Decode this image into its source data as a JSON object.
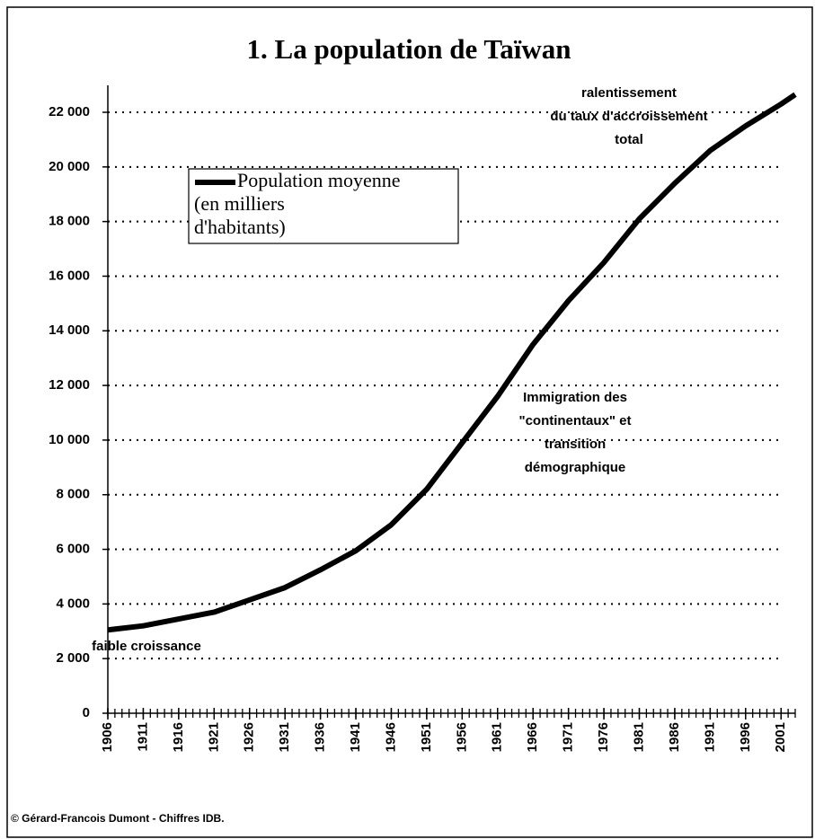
{
  "chart_data": {
    "type": "line",
    "title": "1. La population de Taïwan",
    "x": [
      1906,
      1911,
      1916,
      1921,
      1926,
      1931,
      1936,
      1941,
      1946,
      1951,
      1956,
      1961,
      1966,
      1971,
      1976,
      1981,
      1986,
      1991,
      1996,
      2001,
      2003
    ],
    "series": [
      {
        "name": "Population moyenne\n(en milliers\nd'habitants)",
        "color": "#000000",
        "values": [
          3050,
          3200,
          3450,
          3700,
          4150,
          4600,
          5250,
          5950,
          6900,
          8200,
          9900,
          11600,
          13500,
          15100,
          16500,
          18100,
          19400,
          20600,
          21500,
          22300,
          22650
        ]
      }
    ],
    "xlim": [
      1906,
      2003
    ],
    "xticks": [
      1906,
      1911,
      1916,
      1921,
      1926,
      1931,
      1936,
      1941,
      1946,
      1951,
      1956,
      1961,
      1966,
      1971,
      1976,
      1981,
      1986,
      1991,
      1996,
      2001
    ],
    "xminorticks": [
      1906,
      1907,
      1908,
      1909,
      1910,
      1911,
      1912,
      1913,
      1914,
      1915,
      1916,
      1917,
      1918,
      1919,
      1920,
      1921,
      1922,
      1923,
      1924,
      1925,
      1926,
      1927,
      1928,
      1929,
      1930,
      1931,
      1932,
      1933,
      1934,
      1935,
      1936,
      1937,
      1938,
      1939,
      1940,
      1941,
      1942,
      1943,
      1944,
      1945,
      1946,
      1947,
      1948,
      1949,
      1950,
      1951,
      1952,
      1953,
      1954,
      1955,
      1956,
      1957,
      1958,
      1959,
      1960,
      1961,
      1962,
      1963,
      1964,
      1965,
      1966,
      1967,
      1968,
      1969,
      1970,
      1971,
      1972,
      1973,
      1974,
      1975,
      1976,
      1977,
      1978,
      1979,
      1980,
      1981,
      1982,
      1983,
      1984,
      1985,
      1986,
      1987,
      1988,
      1989,
      1990,
      1991,
      1992,
      1993,
      1994,
      1995,
      1996,
      1997,
      1998,
      1999,
      2000,
      2001,
      2002,
      2003
    ],
    "ylim": [
      0,
      22000
    ],
    "yticks": [
      0,
      {
        "value": 2000,
        "label": "2 000"
      },
      {
        "value": 4000,
        "label": "4 000"
      },
      {
        "value": 6000,
        "label": "6 000"
      },
      {
        "value": 8000,
        "label": "8 000"
      },
      {
        "value": 10000,
        "label": "10 000"
      },
      {
        "value": 12000,
        "label": "12 000"
      },
      {
        "value": 14000,
        "label": "14 000"
      },
      {
        "value": 16000,
        "label": "16 000"
      },
      {
        "value": 18000,
        "label": "18 000"
      },
      {
        "value": 20000,
        "label": "20 000"
      },
      {
        "value": 22000,
        "label": "22 000"
      }
    ],
    "grid": true,
    "annotations": [
      [
        "ralentissement",
        "du taux d'accroissement",
        "total"
      ],
      [
        "Immigration des",
        "\"continentaux\" et",
        "transition",
        "démographique"
      ],
      [
        "faible croissance"
      ]
    ],
    "source": "© Gérard-Francois Dumont - Chiffres IDB."
  }
}
